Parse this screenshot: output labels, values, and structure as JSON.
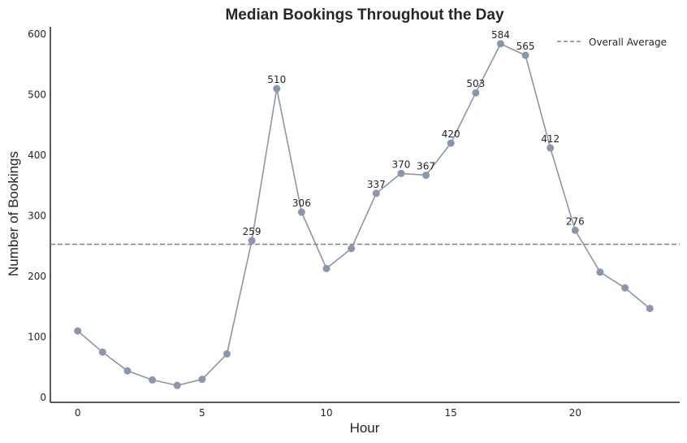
{
  "chart_data": {
    "type": "line",
    "title": "Median Bookings Throughout the Day",
    "xlabel": "Hour",
    "ylabel": "Number of Bookings",
    "xlim": [
      -1.1,
      24.2
    ],
    "ylim": [
      -8,
      612
    ],
    "xticks": [
      0,
      5,
      10,
      15,
      20
    ],
    "yticks": [
      0,
      100,
      200,
      300,
      400,
      500,
      600
    ],
    "grid": false,
    "legend_position": "top-right",
    "series": [
      {
        "x": [
          0,
          1,
          2,
          3,
          4,
          5,
          6,
          7,
          8,
          9,
          10,
          11,
          12,
          13,
          14,
          15,
          16,
          17,
          18,
          19,
          20,
          21,
          22,
          23
        ],
        "values": [
          110,
          75,
          44,
          29,
          20,
          30,
          72,
          259,
          510,
          306,
          213,
          246,
          337,
          370,
          367,
          420,
          503,
          584,
          565,
          412,
          276,
          207,
          181,
          147
        ],
        "color": "#8a96aa"
      }
    ],
    "labeled_points": [
      {
        "x": 7,
        "value": 259,
        "text": "259"
      },
      {
        "x": 8,
        "value": 510,
        "text": "510"
      },
      {
        "x": 9,
        "value": 306,
        "text": "306"
      },
      {
        "x": 12,
        "value": 337,
        "text": "337"
      },
      {
        "x": 13,
        "value": 370,
        "text": "370"
      },
      {
        "x": 14,
        "value": 367,
        "text": "367"
      },
      {
        "x": 15,
        "value": 420,
        "text": "420"
      },
      {
        "x": 16,
        "value": 503,
        "text": "503"
      },
      {
        "x": 17,
        "value": 584,
        "text": "584"
      },
      {
        "x": 18,
        "value": 565,
        "text": "565"
      },
      {
        "x": 19,
        "value": 412,
        "text": "412"
      },
      {
        "x": 20,
        "value": 276,
        "text": "276"
      }
    ],
    "reference_line": {
      "label": "Overall Average",
      "value": 253,
      "style": "dashed",
      "color": "#808080"
    },
    "legend": [
      {
        "label": "Overall Average",
        "style": "dashed",
        "color": "#808080"
      }
    ]
  }
}
